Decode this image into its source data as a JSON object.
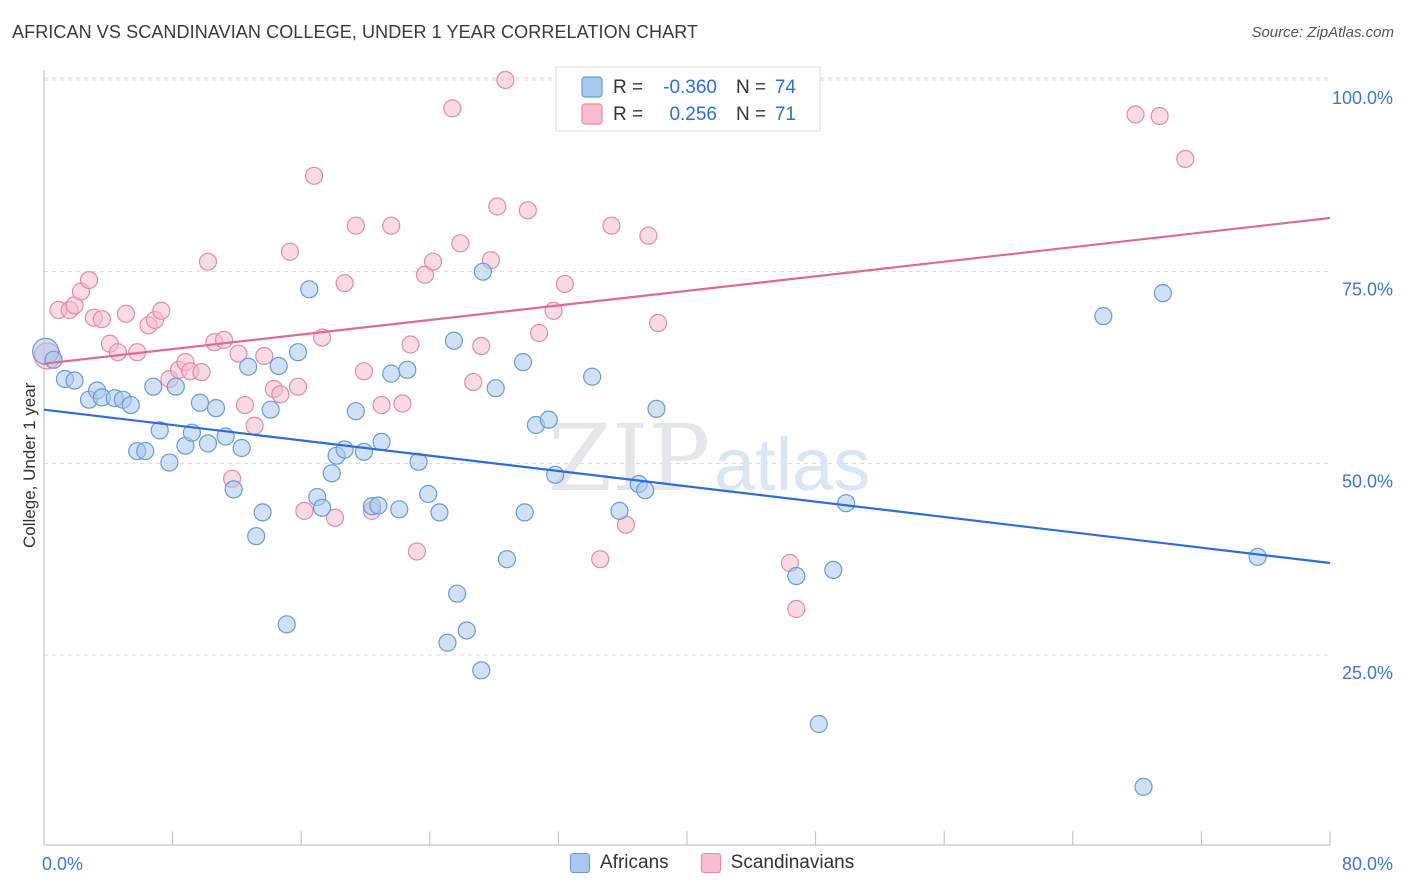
{
  "title": "AFRICAN VS SCANDINAVIAN COLLEGE, UNDER 1 YEAR CORRELATION CHART",
  "source": "Source: ZipAtlas.com",
  "watermark": {
    "zip": "ZIP",
    "atlas": "atlas"
  },
  "colors": {
    "blue_fill": "#aac8ef",
    "blue_stroke": "#6a9ad6",
    "blue_line": "#2b6fd4",
    "pink_fill": "#f6bcd0",
    "pink_stroke": "#e58aaa",
    "pink_line": "#e06a94",
    "tick_label": "#3f78c8",
    "grid": "#d8d8d8"
  },
  "legend_box": {
    "rows": [
      {
        "r_label": "R =",
        "r_value": "-0.360",
        "n_label": "N =",
        "n_value": "74",
        "series": "Africans"
      },
      {
        "r_label": "R =",
        "r_value": "0.256",
        "n_label": "N =",
        "n_value": "71",
        "series": "Scandinavians"
      }
    ]
  },
  "chart_data": {
    "type": "scatter",
    "title": "AFRICAN VS SCANDINAVIAN COLLEGE, UNDER 1 YEAR CORRELATION CHART",
    "xlabel": "",
    "ylabel": "College, Under 1 year",
    "xlim": [
      0,
      80
    ],
    "ylim": [
      0,
      105
    ],
    "x_tick_labels": [
      "0.0%",
      "80.0%"
    ],
    "y_ticks": [
      25,
      50,
      75,
      100
    ],
    "y_tick_labels": [
      "25.0%",
      "50.0%",
      "75.0%",
      "100.0%"
    ],
    "grid": true,
    "legend": "bottom-center",
    "series": [
      {
        "name": "Africans",
        "color": "#aac8ef",
        "trend": {
          "x": [
            0,
            80
          ],
          "y": [
            57.0,
            37.0
          ]
        },
        "points": [
          [
            0.1,
            64.6
          ],
          [
            0.6,
            63.5
          ],
          [
            1.3,
            61.0
          ],
          [
            1.9,
            60.8
          ],
          [
            2.8,
            58.3
          ],
          [
            3.3,
            59.5
          ],
          [
            3.6,
            58.6
          ],
          [
            4.4,
            58.5
          ],
          [
            4.9,
            58.3
          ],
          [
            5.4,
            57.6
          ],
          [
            5.8,
            51.6
          ],
          [
            6.3,
            51.6
          ],
          [
            6.8,
            60.0
          ],
          [
            7.2,
            54.3
          ],
          [
            7.8,
            50.1
          ],
          [
            8.2,
            60.0
          ],
          [
            8.8,
            52.3
          ],
          [
            9.2,
            54.0
          ],
          [
            9.7,
            57.9
          ],
          [
            10.2,
            52.6
          ],
          [
            10.7,
            57.2
          ],
          [
            11.3,
            53.5
          ],
          [
            11.8,
            46.6
          ],
          [
            12.3,
            52.0
          ],
          [
            12.7,
            62.6
          ],
          [
            13.2,
            40.5
          ],
          [
            13.6,
            43.6
          ],
          [
            14.1,
            57.0
          ],
          [
            14.6,
            62.7
          ],
          [
            15.1,
            29.0
          ],
          [
            15.8,
            64.5
          ],
          [
            16.5,
            72.7
          ],
          [
            17.0,
            45.6
          ],
          [
            17.3,
            44.2
          ],
          [
            17.9,
            48.7
          ],
          [
            18.2,
            51.0
          ],
          [
            18.7,
            51.8
          ],
          [
            19.4,
            56.8
          ],
          [
            19.9,
            51.5
          ],
          [
            20.4,
            44.4
          ],
          [
            21.0,
            52.8
          ],
          [
            21.6,
            61.7
          ],
          [
            22.1,
            44.0
          ],
          [
            22.6,
            62.2
          ],
          [
            23.3,
            50.2
          ],
          [
            23.9,
            46.0
          ],
          [
            24.6,
            43.6
          ],
          [
            25.5,
            66.0
          ],
          [
            25.7,
            33.0
          ],
          [
            25.1,
            26.6
          ],
          [
            26.3,
            28.2
          ],
          [
            27.2,
            23.0
          ],
          [
            27.3,
            75.0
          ],
          [
            28.1,
            59.8
          ],
          [
            28.8,
            37.5
          ],
          [
            29.8,
            63.2
          ],
          [
            29.9,
            43.6
          ],
          [
            30.6,
            55.0
          ],
          [
            31.4,
            55.7
          ],
          [
            31.8,
            48.5
          ],
          [
            34.1,
            61.3
          ],
          [
            35.8,
            43.8
          ],
          [
            37.0,
            47.3
          ],
          [
            37.4,
            46.5
          ],
          [
            38.1,
            57.1
          ],
          [
            46.8,
            35.3
          ],
          [
            48.2,
            16.0
          ],
          [
            49.1,
            36.1
          ],
          [
            49.9,
            44.8
          ],
          [
            65.9,
            69.2
          ],
          [
            69.6,
            72.2
          ],
          [
            68.4,
            7.8
          ],
          [
            75.5,
            37.8
          ],
          [
            20.8,
            44.5
          ]
        ]
      },
      {
        "name": "Scandinavians",
        "color": "#f6bcd0",
        "trend": {
          "x": [
            0,
            80
          ],
          "y": [
            63.0,
            82.0
          ]
        },
        "points": [
          [
            0.2,
            64.0
          ],
          [
            0.9,
            70.0
          ],
          [
            1.6,
            70.0
          ],
          [
            1.9,
            70.6
          ],
          [
            2.3,
            72.4
          ],
          [
            2.8,
            73.9
          ],
          [
            3.1,
            69.0
          ],
          [
            3.6,
            68.8
          ],
          [
            4.1,
            65.6
          ],
          [
            4.6,
            64.5
          ],
          [
            5.1,
            69.5
          ],
          [
            5.8,
            64.5
          ],
          [
            6.5,
            68.0
          ],
          [
            6.9,
            68.7
          ],
          [
            7.3,
            69.9
          ],
          [
            7.8,
            61.0
          ],
          [
            8.4,
            62.2
          ],
          [
            8.8,
            63.2
          ],
          [
            9.1,
            62.0
          ],
          [
            9.8,
            61.9
          ],
          [
            10.2,
            76.3
          ],
          [
            10.6,
            65.8
          ],
          [
            11.2,
            66.1
          ],
          [
            11.7,
            48.0
          ],
          [
            12.1,
            64.3
          ],
          [
            12.5,
            57.6
          ],
          [
            13.1,
            54.9
          ],
          [
            13.7,
            64.0
          ],
          [
            14.3,
            59.7
          ],
          [
            14.7,
            59.0
          ],
          [
            15.3,
            77.6
          ],
          [
            15.8,
            60.0
          ],
          [
            16.2,
            43.8
          ],
          [
            16.8,
            87.5
          ],
          [
            17.3,
            66.4
          ],
          [
            18.1,
            42.9
          ],
          [
            18.7,
            73.5
          ],
          [
            19.4,
            81.0
          ],
          [
            19.9,
            62.0
          ],
          [
            20.4,
            43.8
          ],
          [
            21.0,
            57.6
          ],
          [
            21.6,
            81.0
          ],
          [
            22.3,
            57.8
          ],
          [
            22.8,
            65.5
          ],
          [
            23.2,
            38.5
          ],
          [
            23.7,
            74.6
          ],
          [
            24.2,
            76.3
          ],
          [
            25.4,
            96.3
          ],
          [
            25.9,
            78.7
          ],
          [
            26.7,
            60.6
          ],
          [
            27.2,
            65.3
          ],
          [
            27.8,
            76.5
          ],
          [
            28.2,
            83.5
          ],
          [
            28.7,
            100.0
          ],
          [
            30.1,
            83.0
          ],
          [
            30.8,
            67.0
          ],
          [
            31.7,
            69.9
          ],
          [
            32.4,
            73.4
          ],
          [
            34.1,
            95.0
          ],
          [
            34.6,
            37.5
          ],
          [
            35.3,
            81.0
          ],
          [
            36.2,
            42.0
          ],
          [
            37.6,
            79.7
          ],
          [
            38.2,
            68.3
          ],
          [
            42.3,
            100.0
          ],
          [
            43.3,
            95.0
          ],
          [
            46.4,
            37.0
          ],
          [
            46.8,
            31.0
          ],
          [
            67.9,
            95.5
          ],
          [
            69.4,
            95.3
          ],
          [
            71.0,
            89.7
          ]
        ]
      }
    ]
  },
  "legend_bottom": [
    {
      "label": "Africans",
      "color": "#aac8ef",
      "stroke": "#6a9ad6"
    },
    {
      "label": "Scandinavians",
      "color": "#f6bcd0",
      "stroke": "#e58aaa"
    }
  ]
}
